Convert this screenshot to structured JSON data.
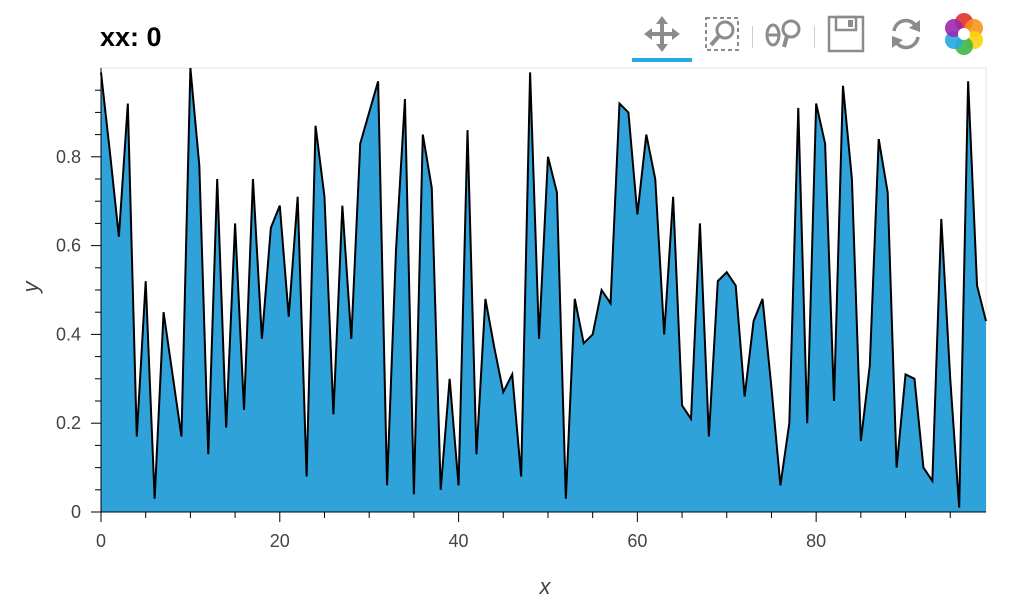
{
  "title": "xx: 0",
  "toolbar": {
    "tools": [
      {
        "name": "pan-tool",
        "icon": "pan-icon",
        "active": true
      },
      {
        "name": "box-zoom-tool",
        "icon": "box-zoom-icon",
        "active": false
      },
      {
        "name": "wheel-zoom-tool",
        "icon": "wheel-zoom-icon",
        "active": false
      },
      {
        "name": "save-tool",
        "icon": "save-icon",
        "active": false
      },
      {
        "name": "reset-tool",
        "icon": "reset-icon",
        "active": false
      },
      {
        "name": "bokeh-logo",
        "icon": "bokeh-logo-icon",
        "active": false
      }
    ],
    "active_color": "#26aae1"
  },
  "chart_data": {
    "type": "area",
    "xlabel": "x",
    "ylabel": "y",
    "xlim": [
      0,
      99
    ],
    "ylim": [
      0,
      1
    ],
    "x_ticks": [
      0,
      20,
      40,
      60,
      80
    ],
    "y_ticks": [
      0,
      0.2,
      0.4,
      0.6,
      0.8
    ],
    "x_tick_labels": [
      "0",
      "20",
      "40",
      "60",
      "80"
    ],
    "y_tick_labels": [
      "0",
      "0.2",
      "0.4",
      "0.6",
      "0.8"
    ],
    "fill_color": "#30a2da",
    "line_color": "#000000",
    "x": [
      0,
      1,
      2,
      3,
      4,
      5,
      6,
      7,
      8,
      9,
      10,
      11,
      12,
      13,
      14,
      15,
      16,
      17,
      18,
      19,
      20,
      21,
      22,
      23,
      24,
      25,
      26,
      27,
      28,
      29,
      30,
      31,
      32,
      33,
      34,
      35,
      36,
      37,
      38,
      39,
      40,
      41,
      42,
      43,
      44,
      45,
      46,
      47,
      48,
      49,
      50,
      51,
      52,
      53,
      54,
      55,
      56,
      57,
      58,
      59,
      60,
      61,
      62,
      63,
      64,
      65,
      66,
      67,
      68,
      69,
      70,
      71,
      72,
      73,
      74,
      75,
      76,
      77,
      78,
      79,
      80,
      81,
      82,
      83,
      84,
      85,
      86,
      87,
      88,
      89,
      90,
      91,
      92,
      93,
      94,
      95,
      96,
      97,
      98,
      99
    ],
    "y": [
      0.99,
      0.81,
      0.62,
      0.92,
      0.17,
      0.52,
      0.03,
      0.45,
      0.31,
      0.17,
      1.0,
      0.78,
      0.13,
      0.75,
      0.19,
      0.65,
      0.23,
      0.75,
      0.39,
      0.64,
      0.69,
      0.44,
      0.71,
      0.08,
      0.87,
      0.71,
      0.22,
      0.69,
      0.39,
      0.83,
      0.9,
      0.97,
      0.06,
      0.59,
      0.93,
      0.04,
      0.85,
      0.73,
      0.05,
      0.3,
      0.06,
      0.86,
      0.13,
      0.48,
      0.37,
      0.27,
      0.31,
      0.08,
      0.99,
      0.39,
      0.8,
      0.72,
      0.03,
      0.48,
      0.38,
      0.4,
      0.5,
      0.47,
      0.92,
      0.9,
      0.67,
      0.85,
      0.75,
      0.4,
      0.71,
      0.24,
      0.21,
      0.65,
      0.17,
      0.52,
      0.54,
      0.51,
      0.26,
      0.43,
      0.48,
      0.28,
      0.06,
      0.2,
      0.91,
      0.2,
      0.92,
      0.83,
      0.25,
      0.96,
      0.75,
      0.16,
      0.33,
      0.84,
      0.72,
      0.1,
      0.31,
      0.3,
      0.1,
      0.07,
      0.66,
      0.3,
      0.01,
      0.97,
      0.51,
      0.43
    ]
  }
}
